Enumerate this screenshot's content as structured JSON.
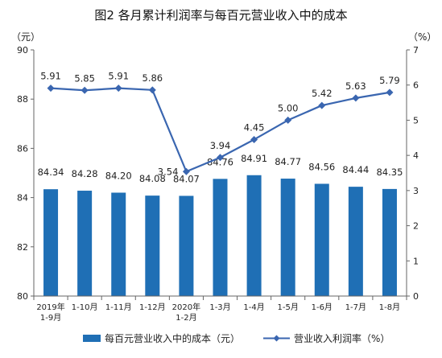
{
  "chart_data": {
    "type": "bar",
    "title": "图2  各月累计利润率与每百元营业收入中的成本",
    "left_unit": "（元）",
    "right_unit": "（%）",
    "categories": [
      [
        "2019年",
        "1-9月"
      ],
      [
        "1-10月"
      ],
      [
        "1-11月"
      ],
      [
        "1-12月"
      ],
      [
        "2020年",
        "1-2月"
      ],
      [
        "1-3月"
      ],
      [
        "1-4月"
      ],
      [
        "1-5月"
      ],
      [
        "1-6月"
      ],
      [
        "1-7月"
      ],
      [
        "1-8月"
      ]
    ],
    "bar_series": {
      "name": "每百元营业收入中的成本（元）",
      "color": "#1f6fb5",
      "values": [
        84.34,
        84.28,
        84.2,
        84.08,
        84.07,
        84.76,
        84.91,
        84.77,
        84.56,
        84.44,
        84.35
      ],
      "labels": [
        "84.34",
        "84.28",
        "84.20",
        "84.08",
        "84.07",
        "84.76",
        "84.91",
        "84.77",
        "84.56",
        "84.44",
        "84.35"
      ]
    },
    "line_series": {
      "name": "营业收入利润率（%）",
      "color": "#3a66b0",
      "values": [
        5.91,
        5.85,
        5.91,
        5.86,
        3.54,
        3.94,
        4.45,
        5.0,
        5.42,
        5.63,
        5.79
      ],
      "labels": [
        "5.91",
        "5.85",
        "5.91",
        "5.86",
        "3.54",
        "3.94",
        "4.45",
        "5.00",
        "5.42",
        "5.63",
        "5.79"
      ]
    },
    "y_left": {
      "min": 80,
      "max": 90,
      "ticks": [
        "80",
        "82",
        "84",
        "86",
        "88",
        "90"
      ]
    },
    "y_right": {
      "min": 0,
      "max": 7,
      "ticks": [
        "0",
        "1",
        "2",
        "3",
        "4",
        "5",
        "6",
        "7"
      ]
    },
    "grid": false,
    "legend_position": "bottom"
  }
}
